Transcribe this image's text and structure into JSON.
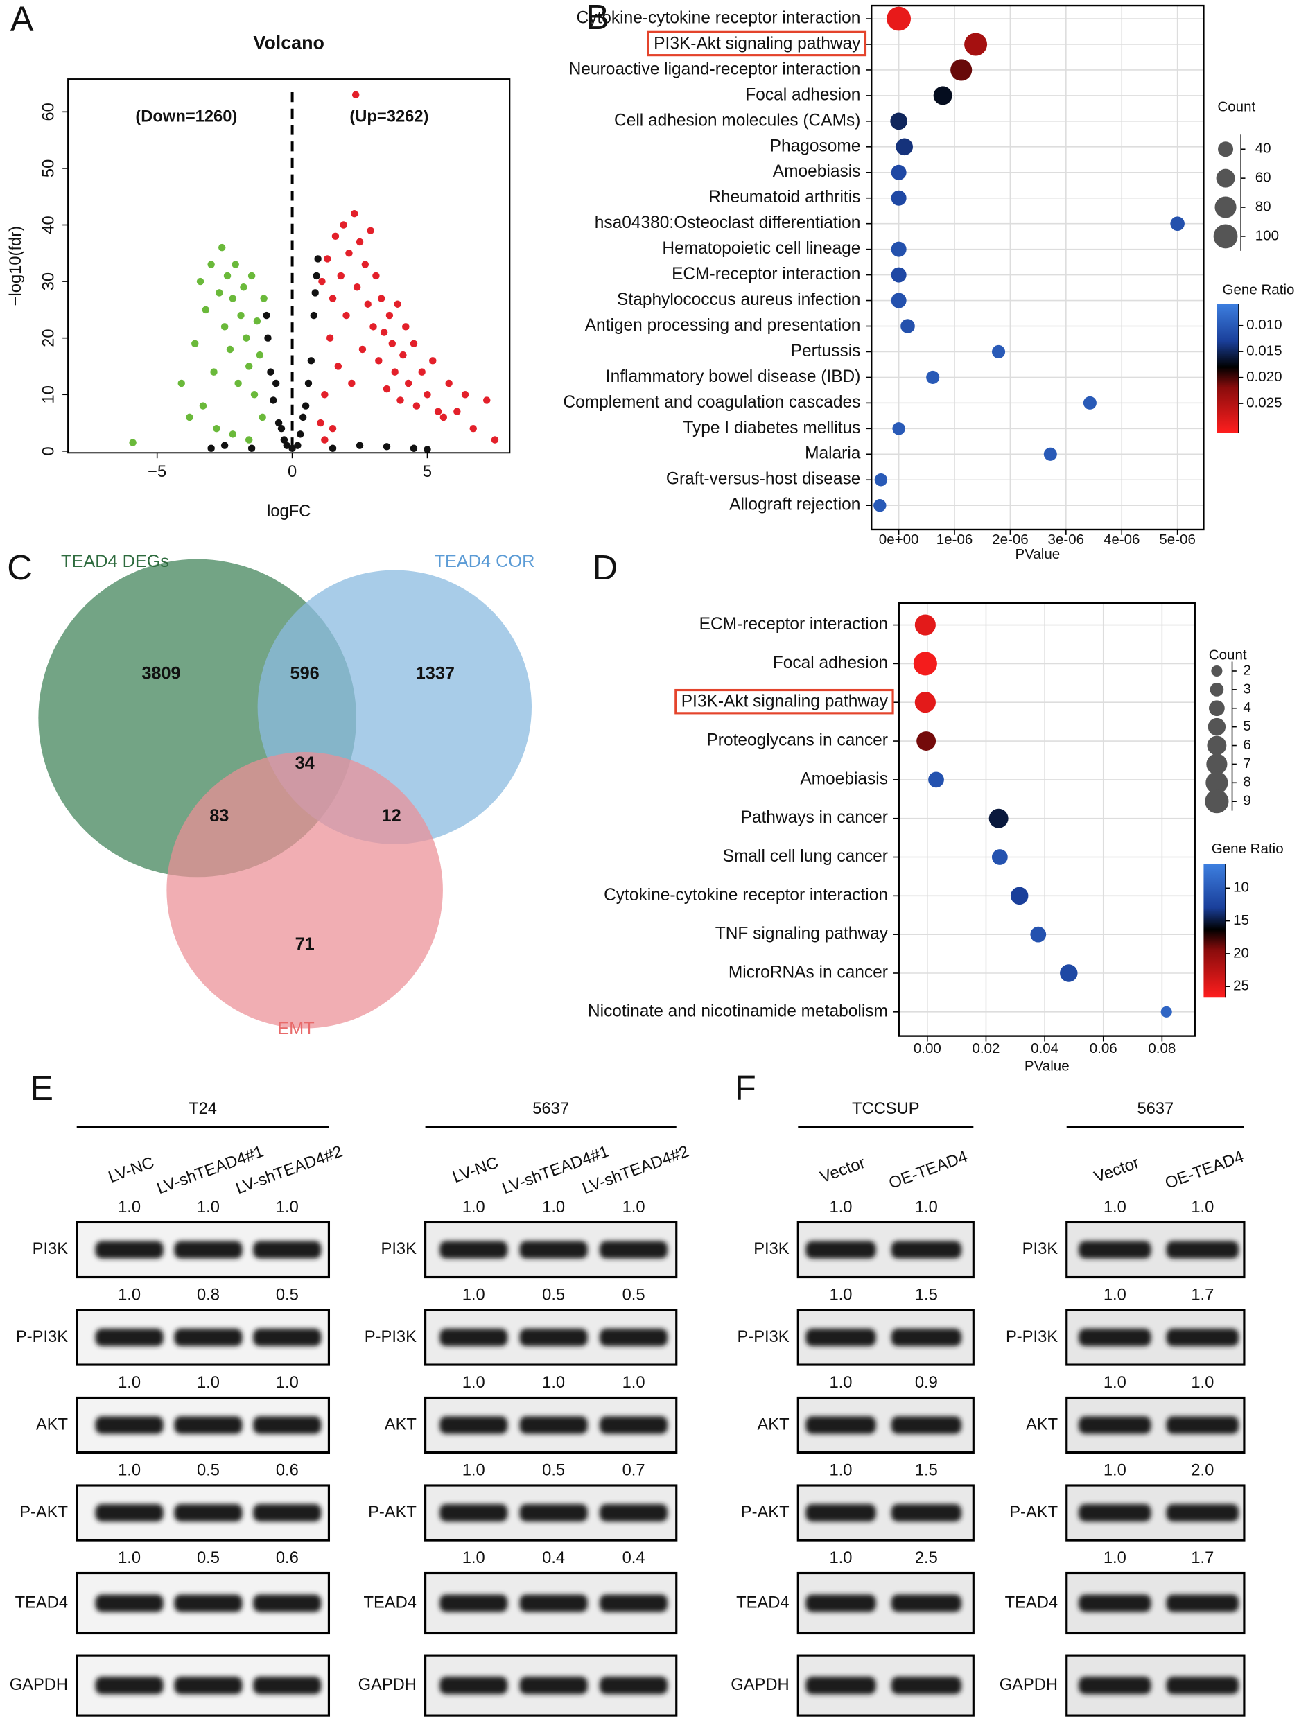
{
  "panel_labels": [
    "A",
    "B",
    "C",
    "D",
    "E",
    "F"
  ],
  "chart_data": [
    {
      "type": "scatter",
      "title": "Volcano",
      "x_label": "logFC",
      "y_label": "−log10(fdr)",
      "annotations": [
        "(Down=1260)",
        "(Up=3262)"
      ],
      "xlim": [
        -8.3,
        8.05
      ],
      "ylim": [
        -0.3,
        65.8
      ],
      "xticks": [
        {
          "value": -5,
          "label": "−5"
        },
        0,
        5
      ],
      "yticks": [
        0,
        10,
        20,
        30,
        40,
        50,
        60
      ],
      "series": [
        {
          "color": "#6ab93a",
          "x": [
            -5.9,
            -4.1,
            -3.8,
            -3.6,
            -3.4,
            -3.3,
            -3.2,
            -3.0,
            -2.9,
            -2.8,
            -2.7,
            -2.6,
            -2.5,
            -2.4,
            -2.3,
            -2.2,
            -2.2,
            -2.1,
            -2.0,
            -1.9,
            -1.8,
            -1.7,
            -1.6,
            -1.6,
            -1.5,
            -1.4,
            -1.3,
            -1.2,
            -1.1,
            -1.05
          ],
          "y": [
            1.5,
            12,
            6,
            19,
            30,
            8,
            25,
            33,
            14,
            4,
            28,
            36,
            22,
            31,
            18,
            27,
            3,
            33,
            12,
            24,
            29,
            20,
            15,
            2,
            31,
            10,
            23,
            17,
            6,
            27
          ]
        },
        {
          "color": "#111111",
          "x": [
            -3.0,
            -2.5,
            -1.5,
            -0.95,
            -0.9,
            -0.8,
            -0.7,
            -0.6,
            -0.5,
            -0.4,
            -0.3,
            -0.2,
            0,
            0.2,
            0.3,
            0.4,
            0.5,
            0.6,
            0.7,
            0.8,
            0.85,
            0.9,
            0.95,
            1.5,
            2.5,
            3.5,
            4.5,
            5.0
          ],
          "y": [
            0.5,
            1,
            0.5,
            24,
            20,
            14,
            9,
            12,
            5,
            4,
            2,
            1,
            0.5,
            1,
            3,
            6,
            8,
            12,
            16,
            24,
            28,
            31,
            34,
            0.5,
            1,
            0.8,
            0.5,
            0.3
          ]
        },
        {
          "color": "#e3202a",
          "x": [
            1.05,
            1.1,
            1.2,
            1.2,
            1.3,
            1.4,
            1.5,
            1.5,
            1.6,
            1.7,
            1.8,
            1.9,
            2.0,
            2.1,
            2.2,
            2.3,
            2.35,
            2.4,
            2.5,
            2.6,
            2.7,
            2.8,
            2.9,
            3.0,
            3.1,
            3.2,
            3.3,
            3.4,
            3.5,
            3.6,
            3.7,
            3.8,
            3.9,
            4.0,
            4.1,
            4.2,
            4.3,
            4.5,
            4.6,
            4.8,
            5.0,
            5.2,
            5.4,
            5.6,
            5.8,
            6.1,
            6.4,
            6.7,
            7.2,
            7.5
          ],
          "y": [
            5,
            30,
            10,
            2,
            34,
            20,
            27,
            4,
            38,
            15,
            31,
            40,
            24,
            35,
            12,
            42,
            63,
            29,
            37,
            18,
            33,
            26,
            39,
            22,
            31,
            16,
            27,
            21,
            11,
            24,
            19,
            14,
            26,
            9,
            17,
            22,
            12,
            19,
            8,
            14,
            10,
            16,
            7,
            6,
            12,
            7,
            10,
            4,
            9,
            2
          ]
        }
      ]
    },
    {
      "type": "dotplot",
      "x_label": "PValue",
      "grid": true,
      "highlight": 1,
      "categories": [
        "Cytokine-cytokine receptor interaction",
        "PI3K-Akt signaling pathway",
        "Neuroactive ligand-receptor interaction",
        "Focal adhesion",
        "Cell adhesion molecules (CAMs)",
        "Phagosome",
        "Amoebiasis",
        "Rheumatoid arthritis",
        "hsa04380:Osteoclast differentiation",
        "Hematopoietic cell lineage",
        "ECM-receptor interaction",
        "Staphylococcus aureus infection",
        "Antigen processing and presentation",
        "Pertussis",
        "Inflammatory bowel disease (IBD)",
        "Complement and coagulation cascades",
        "Type I diabetes mellitus",
        "Malaria",
        "Graft-versus-host disease",
        "Allograft rejection"
      ],
      "values": [
        0,
        1.38e-06,
        1.12e-06,
        7.9e-07,
        0,
        1e-07,
        0,
        0,
        5e-06,
        0,
        0,
        0,
        1.6e-07,
        1.79e-06,
        6.1e-07,
        3.43e-06,
        0,
        2.72e-06,
        -3.2e-07,
        -3.4e-07
      ],
      "sizes": [
        100,
        90,
        80,
        60,
        50,
        50,
        40,
        40,
        35,
        40,
        40,
        40,
        35,
        30,
        30,
        30,
        28,
        30,
        28,
        28
      ],
      "gene_ratio": [
        0.029,
        0.024,
        0.021,
        0.017,
        0.015,
        0.014,
        0.012,
        0.012,
        0.011,
        0.011,
        0.012,
        0.011,
        0.011,
        0.01,
        0.01,
        0.01,
        0.01,
        0.01,
        0.01,
        0.01
      ],
      "xlim": [
        -4.9e-07,
        5.47e-06
      ],
      "xticks": [
        {
          "value": 0,
          "label": "0e+00"
        },
        {
          "value": 1e-06,
          "label": "1e-06"
        },
        {
          "value": 2e-06,
          "label": "2e-06"
        },
        {
          "value": 3e-06,
          "label": "3e-06"
        },
        {
          "value": 4e-06,
          "label": "4e-06"
        },
        {
          "value": 5e-06,
          "label": "5e-06"
        }
      ],
      "size_legend": {
        "title": "Count",
        "values": [
          40,
          60,
          80,
          100
        ]
      },
      "colorbar": {
        "title": "Gene Ratio",
        "lim": [
          0.0058,
          0.0307
        ],
        "ticks": [
          {
            "value": 0.01,
            "label": "0.010"
          },
          {
            "value": 0.015,
            "label": "0.015"
          },
          {
            "value": 0.02,
            "label": "0.020"
          },
          {
            "value": 0.025,
            "label": "0.025"
          }
        ],
        "stops": [
          {
            "value": 0.0058,
            "color": "#3d7fe0"
          },
          {
            "value": 0.013,
            "color": "#1a3f9a"
          },
          {
            "value": 0.018,
            "color": "#000000"
          },
          {
            "value": 0.022,
            "color": "#8a0c0c"
          },
          {
            "value": 0.0307,
            "color": "#ff1e1e"
          }
        ]
      }
    },
    {
      "type": "dotplot",
      "x_label": "PValue",
      "grid": true,
      "highlight": 2,
      "categories": [
        "ECM-receptor interaction",
        "Focal adhesion",
        "PI3K-Akt signaling pathway",
        "Proteoglycans in cancer",
        "Amoebiasis",
        "Pathways in cancer",
        "Small cell lung cancer",
        "Cytokine-cytokine receptor interaction",
        "TNF signaling pathway",
        "MicroRNAs in cancer",
        "Nicotinate and nicotinamide metabolism"
      ],
      "values": [
        -0.0007,
        -0.0007,
        -0.0007,
        -0.0004,
        0.003,
        0.0243,
        0.0247,
        0.0314,
        0.0378,
        0.0482,
        0.0815
      ],
      "sizes": [
        7,
        9,
        7,
        6,
        4,
        6,
        4,
        5,
        4,
        5,
        2
      ],
      "gene_ratio": [
        25,
        26,
        25,
        19,
        11,
        15,
        11,
        13,
        11,
        12,
        9
      ],
      "xlim": [
        -0.0097,
        0.0912
      ],
      "xticks": [
        {
          "value": 0,
          "label": "0.00"
        },
        0.02,
        0.04,
        0.06,
        0.08
      ],
      "size_legend": {
        "title": "Count",
        "values": [
          2,
          3,
          4,
          5,
          6,
          7,
          8,
          9
        ]
      },
      "colorbar": {
        "title": "Gene Ratio",
        "lim": [
          6.3,
          26.7
        ],
        "ticks": [
          10,
          15,
          20,
          25
        ],
        "stops": [
          {
            "value": 6.3,
            "color": "#3d7fe0"
          },
          {
            "value": 13,
            "color": "#1a3f9a"
          },
          {
            "value": 16.3,
            "color": "#000000"
          },
          {
            "value": 19.5,
            "color": "#8a0c0c"
          },
          {
            "value": 26.7,
            "color": "#ff1e1e"
          }
        ]
      }
    }
  ],
  "venn": {
    "sets": [
      "TEAD4 DEGs",
      "TEAD4 COR",
      "EMT"
    ],
    "regions": {
      "degs_only": 3809,
      "degs_cor": 596,
      "cor_only": 1337,
      "all": 34,
      "degs_emt": 83,
      "cor_emt": 12,
      "emt_only": 71
    }
  },
  "blots": [
    {
      "cell_line": "T24",
      "lanes": [
        "LV-NC",
        "LV-shTEAD4#1",
        "LV-shTEAD4#2"
      ],
      "rows": [
        {
          "protein": "PI3K",
          "ratios": [
            "1.0",
            "1.0",
            "1.0"
          ]
        },
        {
          "protein": "P-PI3K",
          "ratios": [
            "1.0",
            "0.8",
            "0.5"
          ]
        },
        {
          "protein": "AKT",
          "ratios": [
            "1.0",
            "1.0",
            "1.0"
          ]
        },
        {
          "protein": "P-AKT",
          "ratios": [
            "1.0",
            "0.5",
            "0.6"
          ]
        },
        {
          "protein": "TEAD4",
          "ratios": [
            "1.0",
            "0.5",
            "0.6"
          ]
        },
        {
          "protein": "GAPDH"
        }
      ]
    },
    {
      "cell_line": "5637",
      "lanes": [
        "LV-NC",
        "LV-shTEAD4#1",
        "LV-shTEAD4#2"
      ],
      "rows": [
        {
          "protein": "PI3K",
          "ratios": [
            "1.0",
            "1.0",
            "1.0"
          ]
        },
        {
          "protein": "P-PI3K",
          "ratios": [
            "1.0",
            "0.5",
            "0.5"
          ]
        },
        {
          "protein": "AKT",
          "ratios": [
            "1.0",
            "1.0",
            "1.0"
          ]
        },
        {
          "protein": "P-AKT",
          "ratios": [
            "1.0",
            "0.5",
            "0.7"
          ]
        },
        {
          "protein": "TEAD4",
          "ratios": [
            "1.0",
            "0.4",
            "0.4"
          ]
        },
        {
          "protein": "GAPDH"
        }
      ]
    },
    {
      "cell_line": "TCCSUP",
      "lanes": [
        "Vector",
        "OE-TEAD4"
      ],
      "rows": [
        {
          "protein": "PI3K",
          "ratios": [
            "1.0",
            "1.0"
          ]
        },
        {
          "protein": "P-PI3K",
          "ratios": [
            "1.0",
            "1.5"
          ]
        },
        {
          "protein": "AKT",
          "ratios": [
            "1.0",
            "0.9"
          ]
        },
        {
          "protein": "P-AKT",
          "ratios": [
            "1.0",
            "1.5"
          ]
        },
        {
          "protein": "TEAD4",
          "ratios": [
            "1.0",
            "2.5"
          ]
        },
        {
          "protein": "GAPDH"
        }
      ]
    },
    {
      "cell_line": "5637",
      "lanes": [
        "Vector",
        "OE-TEAD4"
      ],
      "rows": [
        {
          "protein": "PI3K",
          "ratios": [
            "1.0",
            "1.0"
          ]
        },
        {
          "protein": "P-PI3K",
          "ratios": [
            "1.0",
            "1.7"
          ]
        },
        {
          "protein": "AKT",
          "ratios": [
            "1.0",
            "1.0"
          ]
        },
        {
          "protein": "P-AKT",
          "ratios": [
            "1.0",
            "2.0"
          ]
        },
        {
          "protein": "TEAD4",
          "ratios": [
            "1.0",
            "1.7"
          ]
        },
        {
          "protein": "GAPDH"
        }
      ]
    }
  ]
}
